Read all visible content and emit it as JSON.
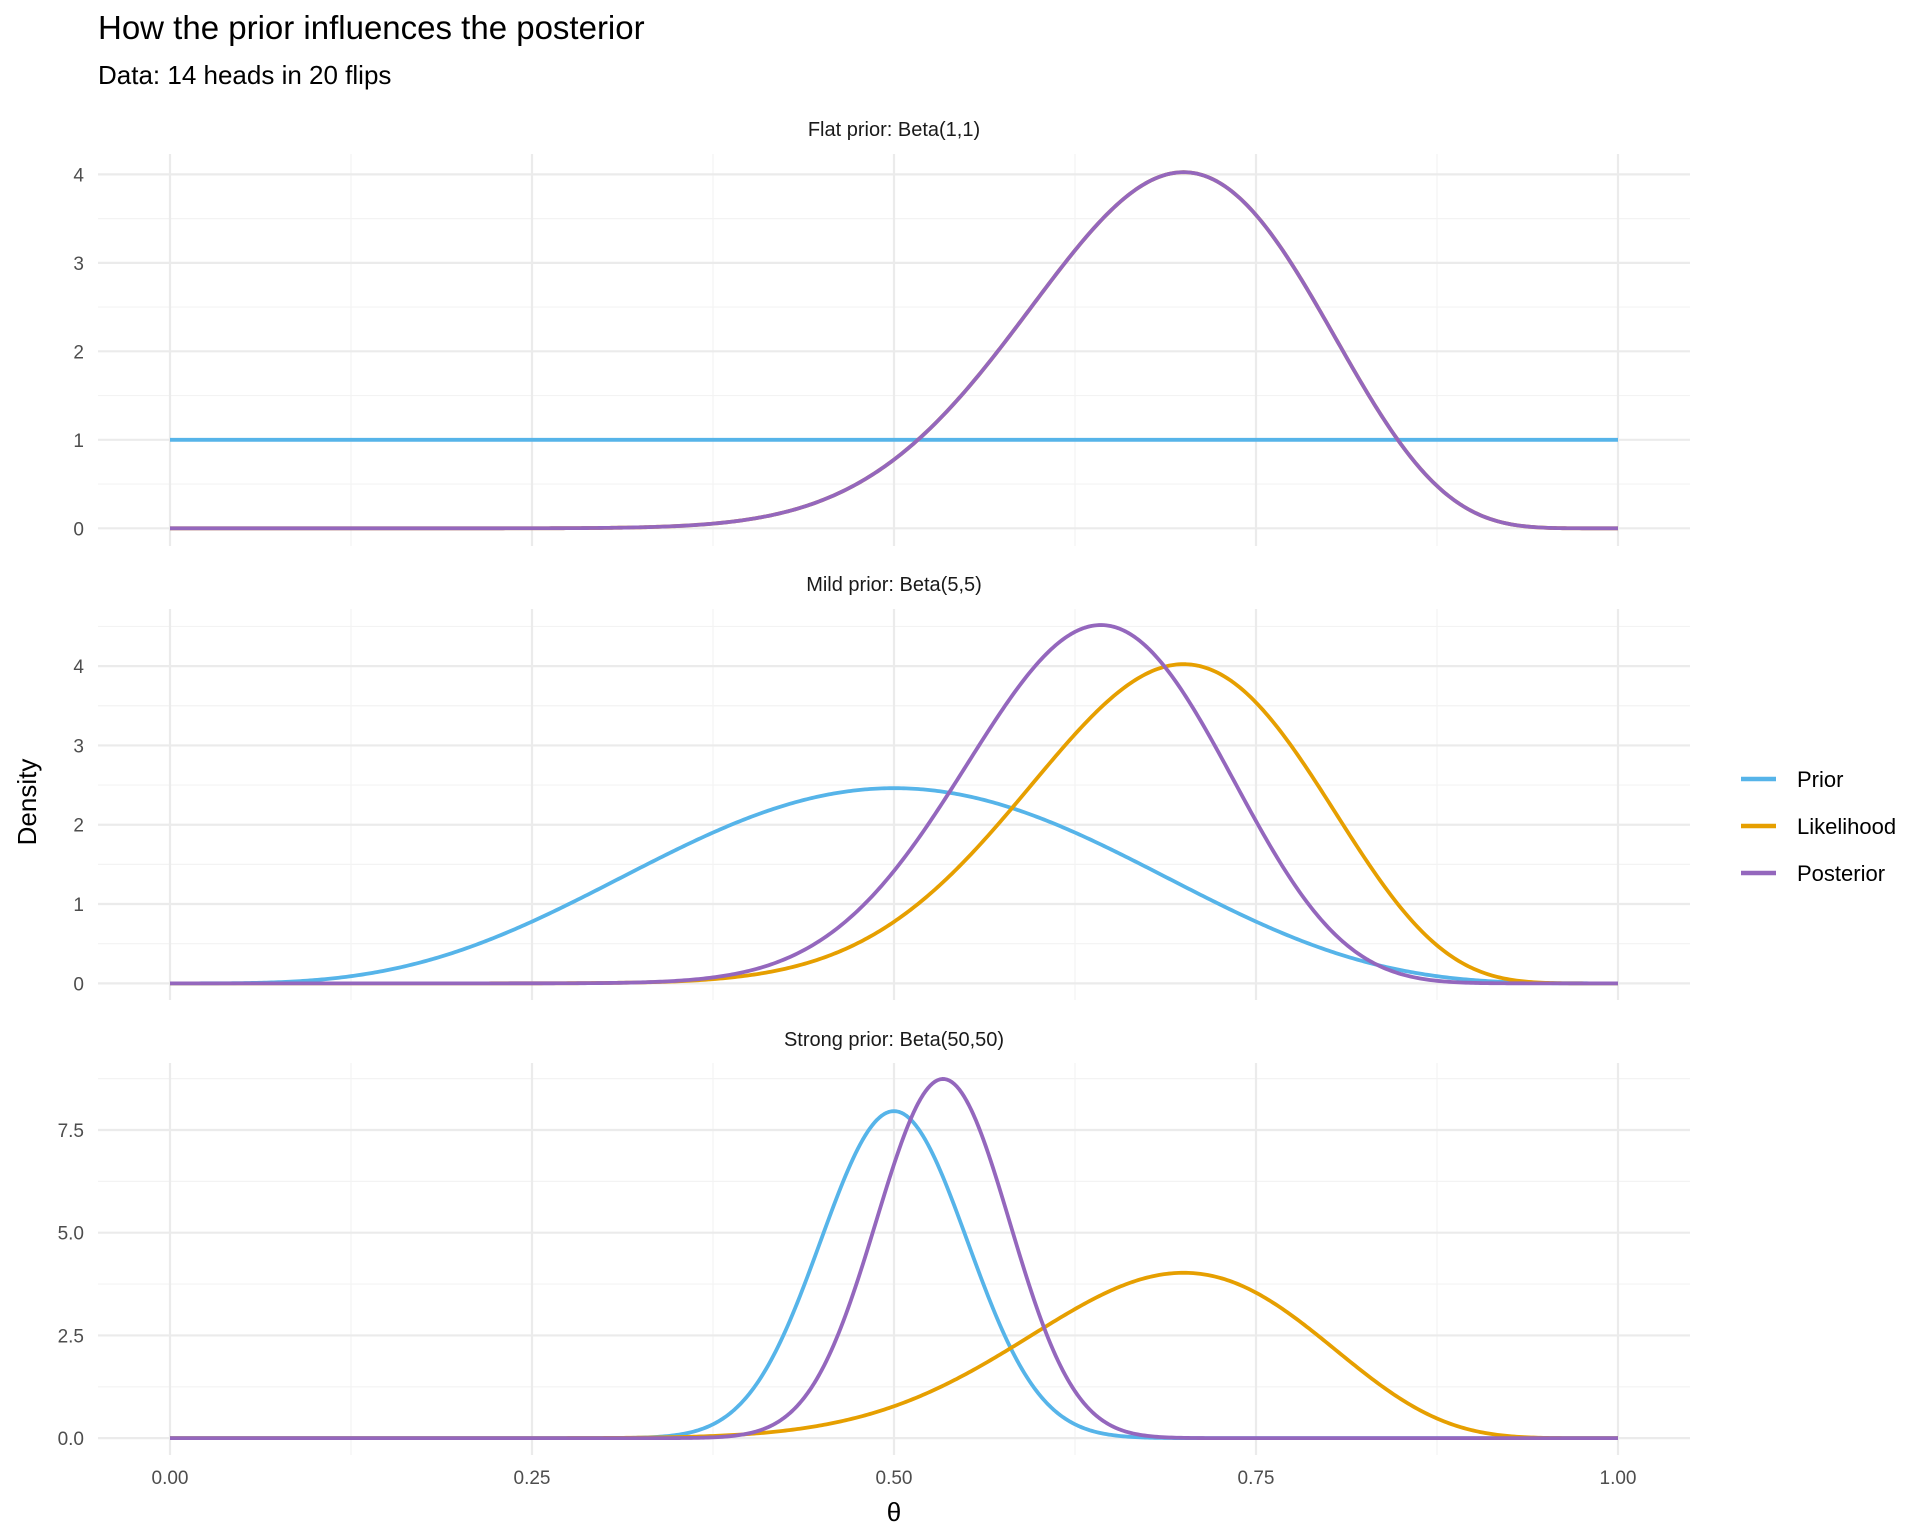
{
  "chart_data": {
    "type": "line",
    "title": "How the prior influences the posterior",
    "subtitle": "Data: 14 heads in 20 flips",
    "xlabel": "θ",
    "ylabel": "Density",
    "xlim": [
      0,
      1
    ],
    "x_ticks": [
      "0.00",
      "0.25",
      "0.50",
      "0.75",
      "1.00"
    ],
    "x_tick_values": [
      0,
      0.25,
      0.5,
      0.75,
      1
    ],
    "data": {
      "heads": 14,
      "flips": 20
    },
    "legend": {
      "position": "right",
      "entries": [
        {
          "name": "Prior",
          "color": "#56B4E9"
        },
        {
          "name": "Likelihood",
          "color": "#E69F00"
        },
        {
          "name": "Posterior",
          "color": "#9467BD"
        }
      ]
    },
    "panels": [
      {
        "strip": "Flat prior: Beta(1,1)",
        "ylim": [
          -0.2,
          4.23
        ],
        "y_ticks": [
          "0",
          "1",
          "2",
          "3",
          "4"
        ],
        "y_tick_values": [
          0,
          1,
          2,
          3,
          4
        ],
        "series": [
          {
            "name": "Prior",
            "dist": "Beta",
            "a": 1,
            "b": 1
          },
          {
            "name": "Likelihood",
            "dist": "Beta",
            "a": 15,
            "b": 7
          },
          {
            "name": "Posterior",
            "dist": "Beta",
            "a": 15,
            "b": 7
          }
        ]
      },
      {
        "strip": "Mild prior: Beta(5,5)",
        "ylim": [
          -0.21,
          4.72
        ],
        "y_ticks": [
          "0",
          "1",
          "2",
          "3",
          "4"
        ],
        "y_tick_values": [
          0,
          1,
          2,
          3,
          4
        ],
        "series": [
          {
            "name": "Prior",
            "dist": "Beta",
            "a": 5,
            "b": 5
          },
          {
            "name": "Likelihood",
            "dist": "Beta",
            "a": 15,
            "b": 7
          },
          {
            "name": "Posterior",
            "dist": "Beta",
            "a": 19,
            "b": 11
          }
        ]
      },
      {
        "strip": "Strong prior: Beta(50,50)",
        "ylim": [
          -0.41,
          9.13
        ],
        "y_ticks": [
          "0.0",
          "2.5",
          "5.0",
          "7.5"
        ],
        "y_tick_values": [
          0,
          2.5,
          5,
          7.5
        ],
        "series": [
          {
            "name": "Prior",
            "dist": "Beta",
            "a": 50,
            "b": 50
          },
          {
            "name": "Likelihood",
            "dist": "Beta",
            "a": 15,
            "b": 7
          },
          {
            "name": "Posterior",
            "dist": "Beta",
            "a": 64,
            "b": 56
          }
        ]
      }
    ]
  }
}
